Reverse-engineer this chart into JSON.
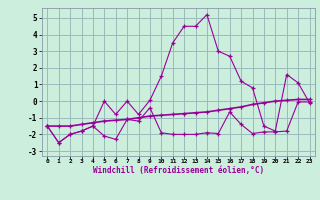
{
  "x": [
    0,
    1,
    2,
    3,
    4,
    5,
    6,
    7,
    8,
    9,
    10,
    11,
    12,
    13,
    14,
    15,
    16,
    17,
    18,
    19,
    20,
    21,
    22,
    23
  ],
  "line1": [
    -1.5,
    -2.5,
    -2.0,
    -1.8,
    -1.5,
    0.0,
    -0.8,
    0.0,
    -0.8,
    0.05,
    1.5,
    3.5,
    4.5,
    4.5,
    5.2,
    3.0,
    2.7,
    1.2,
    0.8,
    -1.5,
    -1.8,
    1.6,
    1.1,
    -0.1
  ],
  "line2": [
    -1.5,
    -2.5,
    -2.0,
    -1.8,
    -1.5,
    -2.1,
    -2.3,
    -1.1,
    -1.2,
    -0.4,
    -1.9,
    -2.0,
    -2.0,
    -2.0,
    -1.9,
    -1.95,
    -0.65,
    -1.4,
    -1.95,
    -1.85,
    -1.85,
    -1.8,
    -0.05,
    -0.05
  ],
  "line3": [
    -1.5,
    -1.5,
    -1.5,
    -1.4,
    -1.3,
    -1.2,
    -1.15,
    -1.1,
    -1.0,
    -0.9,
    -0.85,
    -0.8,
    -0.75,
    -0.7,
    -0.65,
    -0.55,
    -0.45,
    -0.35,
    -0.2,
    -0.1,
    0.0,
    0.05,
    0.1,
    0.1
  ],
  "color": "#990099",
  "background": "#cceedd",
  "grid_color": "#99bbbb",
  "xlabel": "Windchill (Refroidissement éolien,°C)",
  "xlim": [
    -0.5,
    23.5
  ],
  "ylim": [
    -3.3,
    5.6
  ],
  "yticks": [
    -3,
    -2,
    -1,
    0,
    1,
    2,
    3,
    4,
    5
  ],
  "xticks": [
    0,
    1,
    2,
    3,
    4,
    5,
    6,
    7,
    8,
    9,
    10,
    11,
    12,
    13,
    14,
    15,
    16,
    17,
    18,
    19,
    20,
    21,
    22,
    23
  ]
}
